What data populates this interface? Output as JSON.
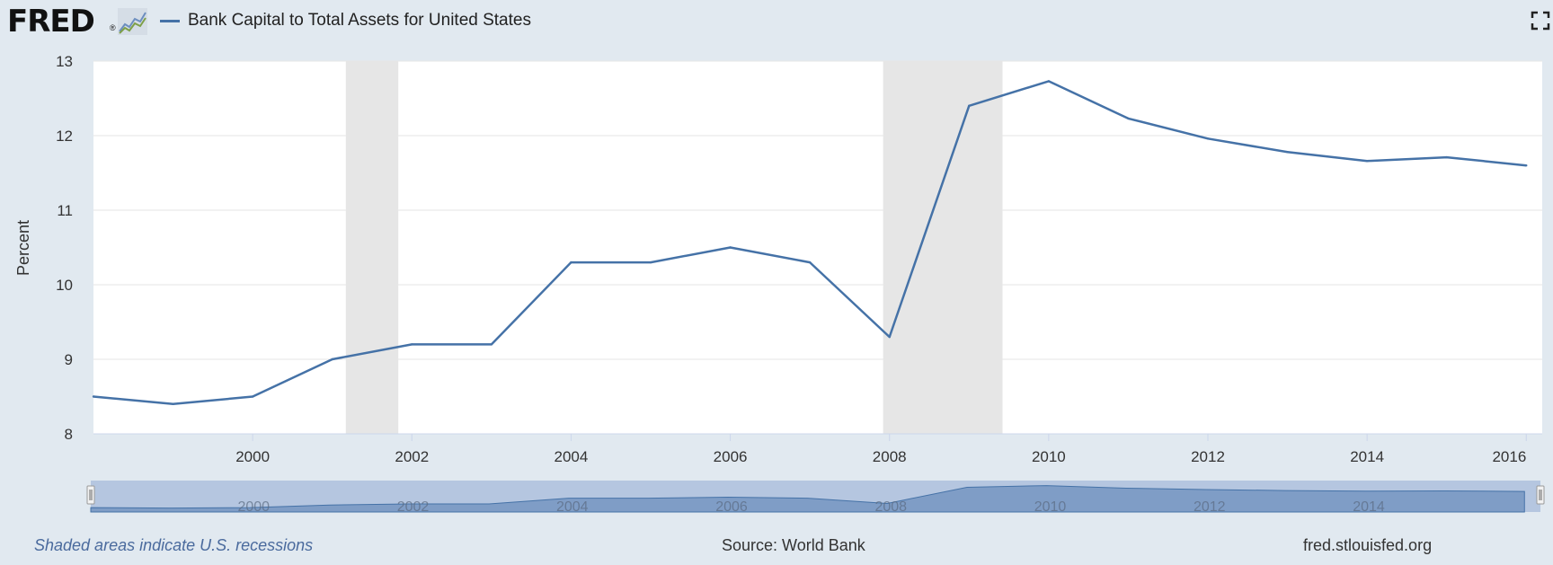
{
  "header": {
    "logo": "FRED",
    "logo_reg": "®",
    "legend_label": "Bank Capital to Total Assets for United States"
  },
  "icons": [
    "fred-chart-icon",
    "fullscreen-icon"
  ],
  "footer": {
    "recession_note": "Shaded areas indicate U.S. recessions",
    "source": "Source: World Bank",
    "url": "fred.stlouisfed.org"
  },
  "colors": {
    "series": "#4572a7",
    "recession": "#e6e6e6",
    "background": "#e1e9f0",
    "navigator_fill": "#7f9dc6"
  },
  "chart_data": {
    "type": "line",
    "title": "",
    "ylabel": "Percent",
    "xlabel": "",
    "ylim": [
      8,
      13
    ],
    "xlim": [
      1998,
      2016.2
    ],
    "yticks": [
      8,
      9,
      10,
      11,
      12,
      13
    ],
    "xticks": [
      2000,
      2002,
      2004,
      2006,
      2008,
      2010,
      2012,
      2014,
      2016
    ],
    "grid": true,
    "series": [
      {
        "name": "Bank Capital to Total Assets for United States",
        "x": [
          1998,
          1999,
          2000,
          2001,
          2002,
          2003,
          2004,
          2005,
          2006,
          2007,
          2008,
          2009,
          2010,
          2011,
          2012,
          2013,
          2014,
          2015,
          2016
        ],
        "values": [
          8.5,
          8.4,
          8.5,
          9.0,
          9.2,
          9.2,
          10.3,
          10.3,
          10.5,
          10.3,
          9.3,
          12.4,
          12.73,
          12.23,
          11.96,
          11.78,
          11.66,
          11.71,
          11.6
        ]
      }
    ],
    "recessions": [
      [
        2001.17,
        2001.83
      ],
      [
        2007.92,
        2009.42
      ]
    ],
    "navigator_xticks": [
      2000,
      2002,
      2004,
      2006,
      2008,
      2010,
      2012,
      2014
    ]
  }
}
